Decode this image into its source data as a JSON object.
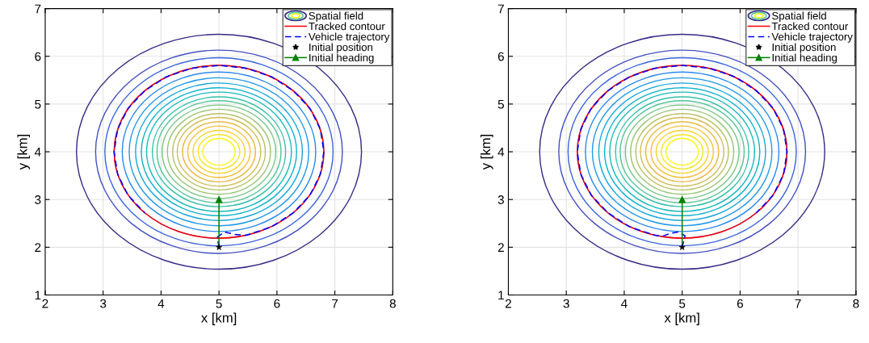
{
  "chart_data": [
    {
      "type": "line",
      "xlabel": "x [km]",
      "ylabel": "y [km]",
      "xlim": [
        2,
        8
      ],
      "ylim": [
        1,
        7
      ],
      "xticks": [
        2,
        3,
        4,
        5,
        6,
        7,
        8
      ],
      "yticks": [
        1,
        2,
        3,
        4,
        5,
        6,
        7
      ],
      "grid": true,
      "legend": "top right",
      "series": [
        {
          "name": "Spatial field",
          "type": "other"
        },
        {
          "name": "Tracked contour",
          "type": "other",
          "color": "#ff0000"
        },
        {
          "name": "Vehicle trajectory",
          "color": "#0000ff",
          "line_style": "dashed",
          "x": [
            5,
            4.97,
            5.09,
            5.27,
            5.47,
            5.91,
            6.28,
            6.57,
            6.75,
            6.81,
            6.75,
            6.57,
            6.28,
            5.91,
            5.47,
            5,
            4.53,
            4.09,
            3.72,
            3.43,
            3.25,
            3.19,
            3.25,
            3.43,
            3.72
          ],
          "values": [
            2,
            2.21,
            2.32,
            2.27,
            2.25,
            2.43,
            2.72,
            3.09,
            3.53,
            4,
            4.47,
            4.91,
            5.28,
            5.57,
            5.75,
            5.81,
            5.75,
            5.57,
            5.28,
            4.91,
            4.47,
            4,
            3.53,
            3.09,
            2.72
          ]
        },
        {
          "name": "Initial position",
          "type": "scatter",
          "color": "#000000",
          "marker": "star",
          "x": [
            5
          ],
          "values": [
            2
          ]
        },
        {
          "name": "Initial heading",
          "color": "#008000",
          "marker": "triangle",
          "x": [
            5,
            5
          ],
          "values": [
            2,
            3
          ]
        }
      ]
    },
    {
      "type": "line",
      "xlabel": "x [km]",
      "ylabel": "y [km]",
      "xlim": [
        2,
        8
      ],
      "ylim": [
        1,
        7
      ],
      "xticks": [
        2,
        3,
        4,
        5,
        6,
        7,
        8
      ],
      "yticks": [
        1,
        2,
        3,
        4,
        5,
        6,
        7
      ],
      "grid": true,
      "legend": "top right",
      "series": [
        {
          "name": "Spatial field",
          "type": "other"
        },
        {
          "name": "Tracked contour",
          "type": "other",
          "color": "#ff0000"
        },
        {
          "name": "Vehicle trajectory",
          "color": "#0000ff",
          "line_style": "dashed",
          "x": [
            5,
            5.05,
            4.94,
            4.8,
            4.66,
            4.53,
            4.09,
            3.72,
            3.43,
            3.25,
            3.19,
            3.25,
            3.43,
            3.72,
            4.09,
            4.53,
            5,
            5.47,
            5.91,
            6.28,
            6.57,
            6.75,
            6.81,
            6.75,
            6.57,
            6.28
          ],
          "values": [
            2,
            2.24,
            2.32,
            2.29,
            2.23,
            2.25,
            2.43,
            2.72,
            3.09,
            3.53,
            4,
            4.47,
            4.91,
            5.28,
            5.57,
            5.75,
            5.81,
            5.75,
            5.57,
            5.28,
            4.91,
            4.47,
            4,
            3.53,
            3.09,
            2.72
          ]
        },
        {
          "name": "Initial position",
          "type": "scatter",
          "color": "#000000",
          "marker": "star",
          "x": [
            5
          ],
          "values": [
            2
          ]
        },
        {
          "name": "Initial heading",
          "color": "#008000",
          "marker": "triangle",
          "x": [
            5,
            5
          ],
          "values": [
            2,
            3
          ]
        }
      ]
    }
  ]
}
